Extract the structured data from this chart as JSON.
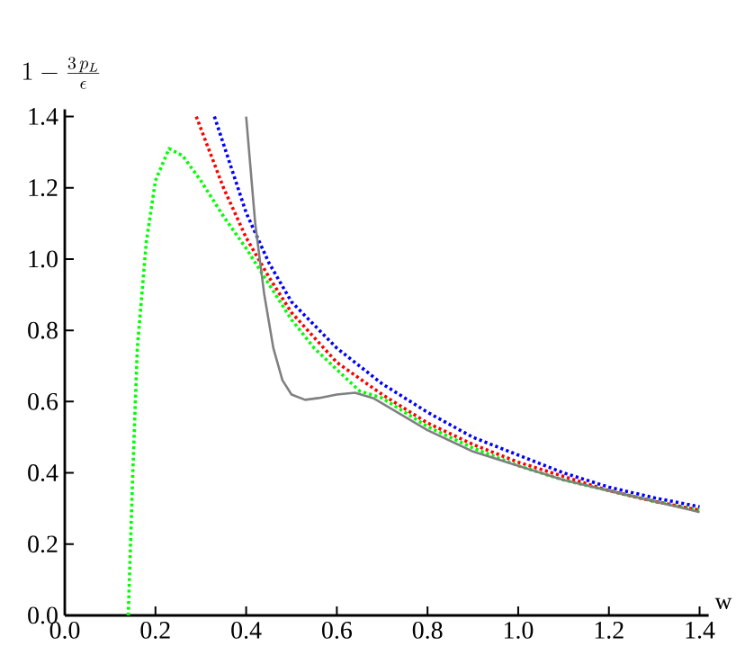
{
  "chart_data": {
    "type": "line",
    "xlabel": "w",
    "ylabel": "1-\\frac{3\\,p_L}{\\epsilon}",
    "xlim": [
      0,
      1.42
    ],
    "ylim": [
      0,
      1.42
    ],
    "xticks": [
      {
        "value": 0,
        "label": "0.0"
      },
      0.2,
      0.4,
      0.6,
      0.8,
      {
        "value": 1,
        "label": "1.0"
      },
      1.2,
      1.4
    ],
    "yticks": [
      {
        "value": 0,
        "label": "0.0"
      },
      0.2,
      0.4,
      0.6,
      0.8,
      {
        "value": 1,
        "label": "1.0"
      },
      1.2,
      1.4
    ],
    "grid": false,
    "marker": "none",
    "series": [
      {
        "color": "#00ff00",
        "line_style": "dotted",
        "x": [
          0.14,
          0.15,
          0.16,
          0.18,
          0.2,
          0.23,
          0.26,
          0.3,
          0.35,
          0.4,
          0.45,
          0.5,
          0.55,
          0.6,
          0.65,
          0.7,
          0.8,
          0.9,
          1.0,
          1.1,
          1.2,
          1.3,
          1.4
        ],
        "values": [
          0,
          0.4,
          0.75,
          1.05,
          1.22,
          1.31,
          1.29,
          1.22,
          1.12,
          1.03,
          0.93,
          0.83,
          0.75,
          0.69,
          0.63,
          0.61,
          0.53,
          0.47,
          0.42,
          0.38,
          0.35,
          0.32,
          0.295
        ]
      },
      {
        "color": "#ff0000",
        "line_style": "dotted",
        "x": [
          0.29,
          0.35,
          0.4,
          0.45,
          0.5,
          0.6,
          0.7,
          0.8,
          0.9,
          1.0,
          1.1,
          1.2,
          1.3,
          1.4
        ],
        "values": [
          1.4,
          1.2,
          1.06,
          0.95,
          0.85,
          0.71,
          0.62,
          0.54,
          0.48,
          0.43,
          0.39,
          0.35,
          0.32,
          0.295
        ]
      },
      {
        "color": "#0000ff",
        "line_style": "dotted",
        "x": [
          0.33,
          0.4,
          0.45,
          0.5,
          0.6,
          0.7,
          0.8,
          0.9,
          1.0,
          1.1,
          1.2,
          1.3,
          1.4
        ],
        "values": [
          1.4,
          1.13,
          0.99,
          0.88,
          0.75,
          0.65,
          0.57,
          0.5,
          0.45,
          0.4,
          0.36,
          0.33,
          0.305
        ]
      },
      {
        "color": "#808080",
        "line_style": "solid",
        "x": [
          0.4,
          0.42,
          0.44,
          0.46,
          0.48,
          0.5,
          0.53,
          0.56,
          0.6,
          0.64,
          0.68,
          0.72,
          0.8,
          0.9,
          1.0,
          1.1,
          1.2,
          1.3,
          1.4
        ],
        "values": [
          1.4,
          1.1,
          0.9,
          0.75,
          0.66,
          0.62,
          0.605,
          0.61,
          0.62,
          0.625,
          0.61,
          0.58,
          0.52,
          0.46,
          0.42,
          0.38,
          0.35,
          0.32,
          0.29
        ]
      }
    ]
  }
}
